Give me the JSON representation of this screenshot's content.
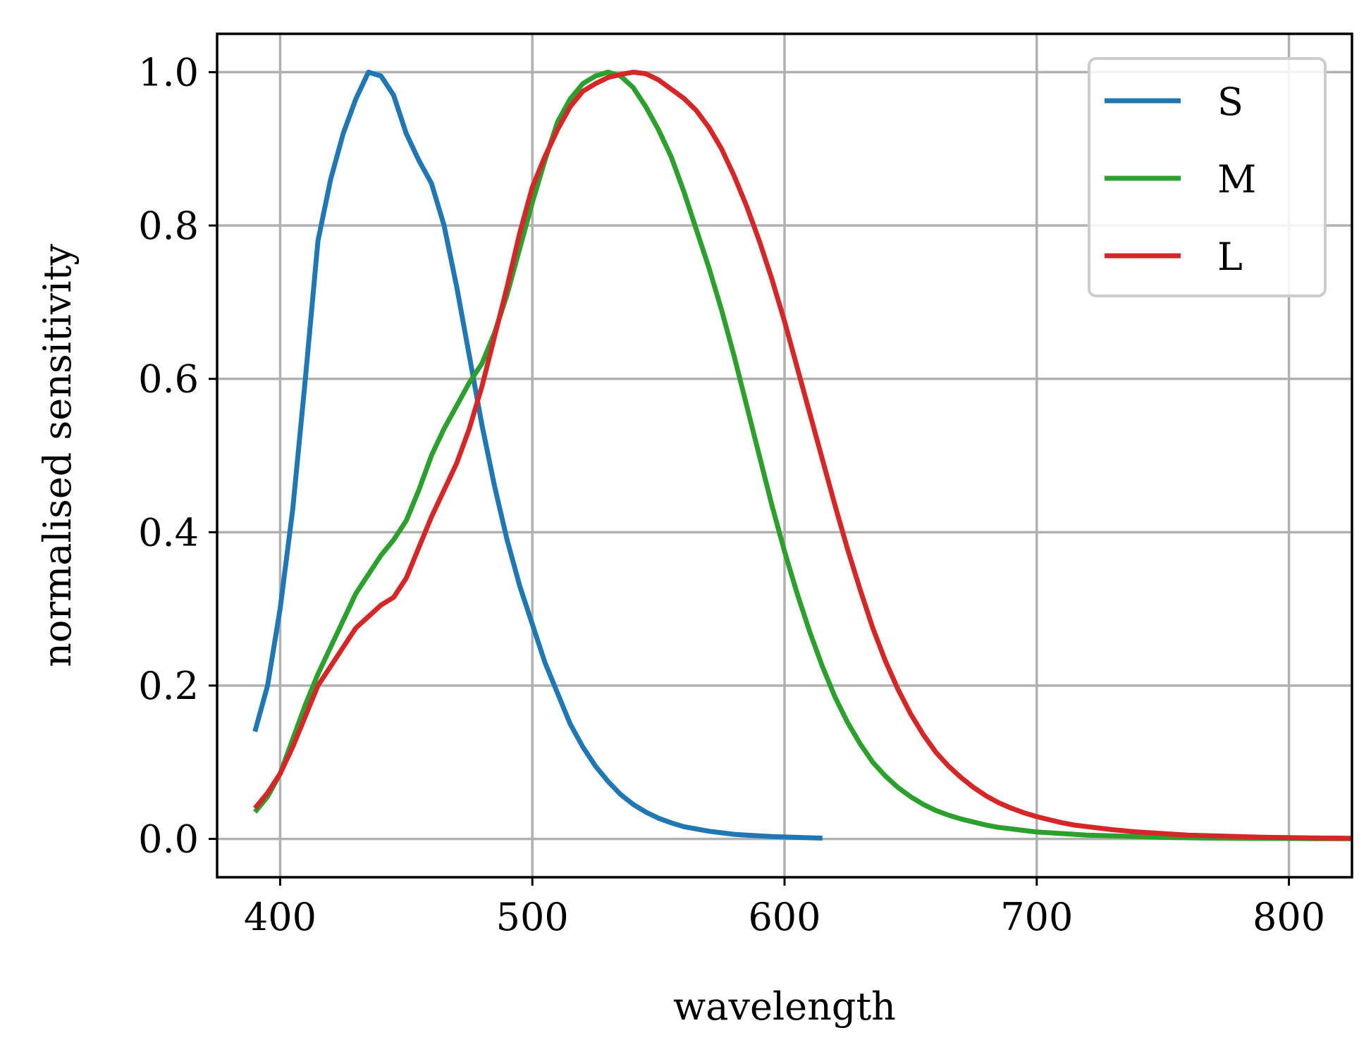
{
  "chart_data": {
    "type": "line",
    "title": "",
    "xlabel": "wavelength",
    "ylabel": "normalised sensitivity",
    "xlim": [
      375,
      825
    ],
    "ylim": [
      -0.05,
      1.05
    ],
    "grid": true,
    "legend_position": "top-right",
    "x_ticks": [
      400,
      500,
      600,
      700,
      800
    ],
    "x_tick_labels": [
      "400",
      "500",
      "600",
      "700",
      "800"
    ],
    "y_ticks": [
      0.0,
      0.2,
      0.4,
      0.6,
      0.8,
      1.0
    ],
    "y_tick_labels": [
      "0.0",
      "0.2",
      "0.4",
      "0.6",
      "0.8",
      "1.0"
    ],
    "series": [
      {
        "name": "S",
        "color": "#1f77b4",
        "x": [
          390,
          395,
          400,
          405,
          410,
          415,
          420,
          425,
          430,
          435,
          440,
          445,
          450,
          455,
          460,
          465,
          470,
          475,
          480,
          485,
          490,
          495,
          500,
          505,
          510,
          515,
          520,
          525,
          530,
          535,
          540,
          545,
          550,
          555,
          560,
          565,
          570,
          575,
          580,
          585,
          590,
          595,
          600,
          605,
          610,
          615
        ],
        "y": [
          0.14,
          0.2,
          0.3,
          0.43,
          0.6,
          0.78,
          0.86,
          0.92,
          0.965,
          1.0,
          0.995,
          0.97,
          0.92,
          0.885,
          0.855,
          0.8,
          0.72,
          0.63,
          0.54,
          0.46,
          0.39,
          0.33,
          0.28,
          0.23,
          0.19,
          0.15,
          0.12,
          0.095,
          0.075,
          0.058,
          0.045,
          0.035,
          0.027,
          0.021,
          0.016,
          0.013,
          0.01,
          0.008,
          0.006,
          0.005,
          0.004,
          0.003,
          0.0025,
          0.002,
          0.0015,
          0.001
        ]
      },
      {
        "name": "M",
        "color": "#2ca02c",
        "x": [
          390,
          395,
          400,
          405,
          410,
          415,
          420,
          425,
          430,
          435,
          440,
          445,
          450,
          455,
          460,
          465,
          470,
          475,
          480,
          485,
          490,
          495,
          500,
          505,
          510,
          515,
          520,
          525,
          530,
          535,
          540,
          545,
          550,
          555,
          560,
          565,
          570,
          575,
          580,
          585,
          590,
          595,
          600,
          605,
          610,
          615,
          620,
          625,
          630,
          635,
          640,
          645,
          650,
          655,
          660,
          665,
          670,
          675,
          680,
          685,
          690,
          695,
          700,
          710,
          720,
          730,
          740,
          750,
          760,
          770,
          780,
          790,
          800,
          810,
          825
        ],
        "y": [
          0.035,
          0.055,
          0.085,
          0.13,
          0.175,
          0.215,
          0.25,
          0.285,
          0.32,
          0.345,
          0.37,
          0.39,
          0.415,
          0.455,
          0.5,
          0.535,
          0.565,
          0.595,
          0.62,
          0.66,
          0.71,
          0.77,
          0.83,
          0.885,
          0.935,
          0.965,
          0.985,
          0.995,
          1.0,
          0.995,
          0.98,
          0.955,
          0.925,
          0.89,
          0.845,
          0.795,
          0.745,
          0.69,
          0.63,
          0.565,
          0.5,
          0.435,
          0.375,
          0.32,
          0.27,
          0.225,
          0.185,
          0.152,
          0.124,
          0.1,
          0.082,
          0.067,
          0.055,
          0.045,
          0.037,
          0.031,
          0.026,
          0.022,
          0.018,
          0.015,
          0.013,
          0.011,
          0.009,
          0.007,
          0.005,
          0.004,
          0.003,
          0.002,
          0.0015,
          0.001,
          0.0008,
          0.0006,
          0.0005,
          0.0004,
          0.0003
        ]
      },
      {
        "name": "L",
        "color": "#d62728",
        "x": [
          390,
          395,
          400,
          405,
          410,
          415,
          420,
          425,
          430,
          435,
          440,
          445,
          450,
          455,
          460,
          465,
          470,
          475,
          480,
          485,
          490,
          495,
          500,
          505,
          510,
          515,
          520,
          525,
          530,
          535,
          540,
          545,
          550,
          555,
          560,
          565,
          570,
          575,
          580,
          585,
          590,
          595,
          600,
          605,
          610,
          615,
          620,
          625,
          630,
          635,
          640,
          645,
          650,
          655,
          660,
          665,
          670,
          675,
          680,
          685,
          690,
          695,
          700,
          705,
          710,
          715,
          720,
          730,
          740,
          750,
          760,
          770,
          780,
          790,
          800,
          810,
          825
        ],
        "y": [
          0.04,
          0.06,
          0.085,
          0.12,
          0.16,
          0.2,
          0.225,
          0.25,
          0.275,
          0.29,
          0.305,
          0.315,
          0.34,
          0.38,
          0.42,
          0.455,
          0.49,
          0.535,
          0.59,
          0.655,
          0.72,
          0.79,
          0.85,
          0.89,
          0.925,
          0.955,
          0.975,
          0.985,
          0.993,
          0.997,
          1.0,
          0.998,
          0.99,
          0.978,
          0.966,
          0.95,
          0.928,
          0.9,
          0.865,
          0.825,
          0.78,
          0.73,
          0.675,
          0.615,
          0.555,
          0.495,
          0.435,
          0.378,
          0.325,
          0.275,
          0.232,
          0.195,
          0.163,
          0.136,
          0.113,
          0.095,
          0.08,
          0.067,
          0.056,
          0.047,
          0.04,
          0.034,
          0.029,
          0.025,
          0.021,
          0.018,
          0.016,
          0.012,
          0.009,
          0.007,
          0.005,
          0.004,
          0.003,
          0.0022,
          0.0016,
          0.0012,
          0.0008
        ]
      }
    ]
  }
}
